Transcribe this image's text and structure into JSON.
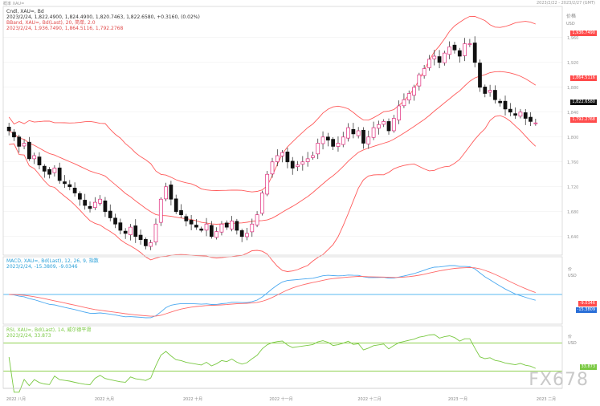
{
  "header": {
    "left": "概率 XAU=",
    "right": "2023/2/22 - 2023/2/27 (GMT)"
  },
  "main_panel": {
    "legend": [
      {
        "text": "Cndl, XAU=, Bd",
        "color": "#333333"
      },
      {
        "text": "2023/2/24, 1,822.4900, 1,824.4900, 1,820.7463, 1,822.6580, +0.3160, (0.02%)",
        "color": "#333333"
      },
      {
        "text": "BBand, XAU=, Bd(Last), 20, 简单, 2.0",
        "color": "#e04a4a"
      },
      {
        "text": "2023/2/24, 1,936.7490, 1,864.5116, 1,792.2768",
        "color": "#e04a4a"
      }
    ],
    "axis_title": "价格",
    "axis_unit": "USD",
    "plates": [
      {
        "text": "1,936.7490",
        "color": "#ff4b4b"
      },
      {
        "text": "1,864.5116",
        "color": "#ff4b4b"
      },
      {
        "text": "1,822.6580",
        "color": "#111111"
      },
      {
        "text": "1,792.2768",
        "color": "#ff4b4b"
      }
    ]
  },
  "macd_panel": {
    "legend": [
      {
        "text": "MACD, XAU=, Bd(Last), 12, 26, 9, 指数",
        "color": "#2aa0d8"
      },
      {
        "text": "2023/2/24, -15.3809, -9.0346",
        "color": "#2aa0d8"
      }
    ],
    "axis_title": "价",
    "axis_unit": "USD",
    "plates": [
      {
        "text": "-9.0346",
        "color": "#ff4b4b"
      },
      {
        "text": "-15.3809",
        "color": "#2a6fd8"
      }
    ]
  },
  "rsi_panel": {
    "legend": [
      {
        "text": "RSI, XAU=, Bd(Last), 14, 威尔德平滑",
        "color": "#7ac943"
      },
      {
        "text": "2023/2/24, 33.873",
        "color": "#7ac943"
      }
    ],
    "axis_title": "价",
    "axis_unit": "USD",
    "plates": [
      {
        "text": "33.873",
        "color": "#7ac943"
      }
    ]
  },
  "x_axis": {
    "month_labels": [
      "2022 八月",
      "2022 九月",
      "2022 十月",
      "2022 十一月",
      "2022 十二月",
      "2023 一月",
      "2023 二月"
    ]
  },
  "watermark": "FX678",
  "chart_data": [
    {
      "type": "candlestick",
      "title": "Cndl, XAU=, Bd",
      "y_unit": "USD",
      "ylim": [
        1610,
        2010
      ],
      "y_ticks": [
        1640,
        1680,
        1720,
        1760,
        1800,
        1840,
        1880,
        1920,
        1960
      ],
      "x": [
        "2022-08",
        "2022-09",
        "2022-10",
        "2022-11",
        "2022-12",
        "2023-01",
        "2023-02"
      ],
      "close_path": [
        1810,
        1800,
        1785,
        1790,
        1765,
        1770,
        1755,
        1745,
        1740,
        1750,
        1730,
        1725,
        1720,
        1710,
        1700,
        1690,
        1685,
        1695,
        1700,
        1680,
        1670,
        1660,
        1650,
        1645,
        1655,
        1640,
        1635,
        1625,
        1630,
        1660,
        1700,
        1720,
        1700,
        1680,
        1675,
        1665,
        1660,
        1655,
        1650,
        1660,
        1640,
        1648,
        1660,
        1655,
        1665,
        1650,
        1640,
        1645,
        1660,
        1675,
        1710,
        1740,
        1760,
        1770,
        1775,
        1760,
        1750,
        1755,
        1760,
        1765,
        1770,
        1790,
        1800,
        1795,
        1785,
        1790,
        1800,
        1815,
        1805,
        1810,
        1790,
        1800,
        1815,
        1820,
        1825,
        1810,
        1830,
        1850,
        1860,
        1870,
        1880,
        1900,
        1910,
        1925,
        1930,
        1920,
        1935,
        1945,
        1940,
        1930,
        1950,
        1950,
        1920,
        1880,
        1870,
        1875,
        1860,
        1855,
        1845,
        1840,
        1835,
        1840,
        1830,
        1825,
        1822.658
      ],
      "bollinger": {
        "upper": 1936.749,
        "middle": 1864.5116,
        "lower": 1792.2768
      },
      "last_close": 1822.658
    },
    {
      "type": "line",
      "title": "MACD, XAU=, Bd(Last), 12, 26, 9, 指数",
      "series": [
        {
          "name": "MACD",
          "last": -15.3809
        },
        {
          "name": "Signal",
          "last": -9.0346
        }
      ],
      "zero_line": true
    },
    {
      "type": "line",
      "title": "RSI, XAU=, Bd(Last), 14, 威尔德平滑",
      "series": [
        {
          "name": "RSI",
          "last": 33.873
        }
      ],
      "bands": [
        70,
        30
      ]
    }
  ]
}
